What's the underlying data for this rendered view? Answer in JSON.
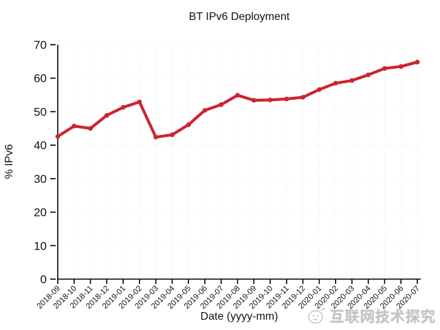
{
  "chart_data": {
    "type": "line",
    "title": "BT IPv6 Deployment",
    "xlabel": "Date (yyyy-mm)",
    "ylabel": "% IPv6",
    "categories": [
      "2018-09",
      "2018-10",
      "2018-11",
      "2018-12",
      "2019-01",
      "2019-02",
      "2019-03",
      "2019-04",
      "2019-05",
      "2019-06",
      "2019-07",
      "2019-08",
      "2019-09",
      "2019-10",
      "2019-11",
      "2019-12",
      "2020-01",
      "2020-02",
      "2020-03",
      "2020-04",
      "2020-05",
      "2020-06",
      "2020-07"
    ],
    "values": [
      42.6,
      45.7,
      45.0,
      48.9,
      51.3,
      52.9,
      42.4,
      43.1,
      46.1,
      50.4,
      52.1,
      54.9,
      53.4,
      53.5,
      53.8,
      54.3,
      56.6,
      58.5,
      59.3,
      61.0,
      62.9,
      63.5,
      64.8
    ],
    "ylim": [
      0,
      70
    ],
    "yticks": [
      0,
      10,
      20,
      30,
      40,
      50,
      60,
      70
    ],
    "grid": "dotted",
    "legend_position": "none"
  },
  "colors": {
    "line": "#cc2433",
    "marker": "#cc2433",
    "grid": "#e9e2e9",
    "axis": "#000000",
    "text": "#111111",
    "watermark": "#c4c0c0",
    "background": "#ffffff"
  },
  "watermark": {
    "text": "互联网技术探究",
    "logo": "penguin-doodle-logo-icon"
  }
}
